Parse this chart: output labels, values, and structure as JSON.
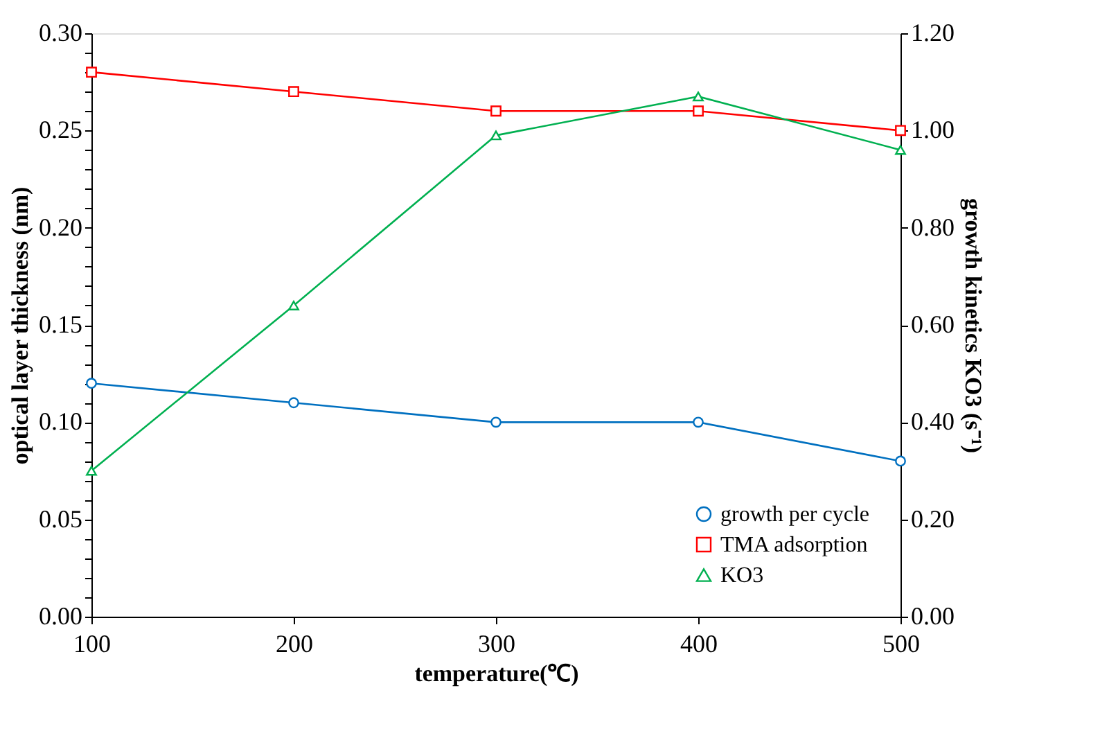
{
  "chart_data": {
    "type": "line",
    "xlabel": "temperature(℃)",
    "ylabel": "optical layer thickness (nm)",
    "y2label": "growth kinetics KO3 (s⁻¹)",
    "x": [
      100,
      200,
      300,
      400,
      500
    ],
    "xlim": [
      100,
      500
    ],
    "xticks": [
      100,
      200,
      300,
      400,
      500
    ],
    "ylim": [
      0,
      0.3
    ],
    "yticks": [
      {
        "value": 0,
        "label": "0.00"
      },
      {
        "value": 0.01,
        "label": null
      },
      {
        "value": 0.02,
        "label": null
      },
      {
        "value": 0.03,
        "label": null
      },
      {
        "value": 0.04,
        "label": null
      },
      {
        "value": 0.05,
        "label": "0.05"
      },
      {
        "value": 0.06,
        "label": null
      },
      {
        "value": 0.07,
        "label": null
      },
      {
        "value": 0.08,
        "label": null
      },
      {
        "value": 0.09,
        "label": null
      },
      {
        "value": 0.1,
        "label": "0.10"
      },
      {
        "value": 0.11,
        "label": null
      },
      {
        "value": 0.12,
        "label": null
      },
      {
        "value": 0.13,
        "label": null
      },
      {
        "value": 0.14,
        "label": null
      },
      {
        "value": 0.15,
        "label": "0.15"
      },
      {
        "value": 0.16,
        "label": null
      },
      {
        "value": 0.17,
        "label": null
      },
      {
        "value": 0.18,
        "label": null
      },
      {
        "value": 0.19,
        "label": null
      },
      {
        "value": 0.2,
        "label": "0.20"
      },
      {
        "value": 0.21,
        "label": null
      },
      {
        "value": 0.22,
        "label": null
      },
      {
        "value": 0.23,
        "label": null
      },
      {
        "value": 0.24,
        "label": null
      },
      {
        "value": 0.25,
        "label": "0.25"
      },
      {
        "value": 0.26,
        "label": null
      },
      {
        "value": 0.27,
        "label": null
      },
      {
        "value": 0.28,
        "label": null
      },
      {
        "value": 0.29,
        "label": null
      },
      {
        "value": 0.3,
        "label": "0.30"
      }
    ],
    "y2lim": [
      0,
      1.2
    ],
    "y2ticks": [
      {
        "value": 0,
        "label": "0.00"
      },
      {
        "value": 0.2,
        "label": "0.20"
      },
      {
        "value": 0.4,
        "label": "0.40"
      },
      {
        "value": 0.6,
        "label": "0.60"
      },
      {
        "value": 0.8,
        "label": "0.80"
      },
      {
        "value": 1.0,
        "label": "1.00"
      },
      {
        "value": 1.2,
        "label": "1.20"
      }
    ],
    "grid": false,
    "legend": "bottom right",
    "series": [
      {
        "name": "growth per cycle",
        "color": "#0070c0",
        "marker": "circle",
        "values": [
          0.12,
          0.11,
          0.1,
          0.1,
          0.08
        ]
      },
      {
        "name": "TMA adsorption",
        "color": "#ff0000",
        "marker": "square",
        "values": [
          0.28,
          0.27,
          0.26,
          0.26,
          0.25
        ]
      },
      {
        "name": "KO3",
        "color": "#00b050",
        "marker": "triangle",
        "axis": "y2",
        "values": [
          0.3,
          0.64,
          0.99,
          1.07,
          0.96
        ]
      }
    ]
  }
}
